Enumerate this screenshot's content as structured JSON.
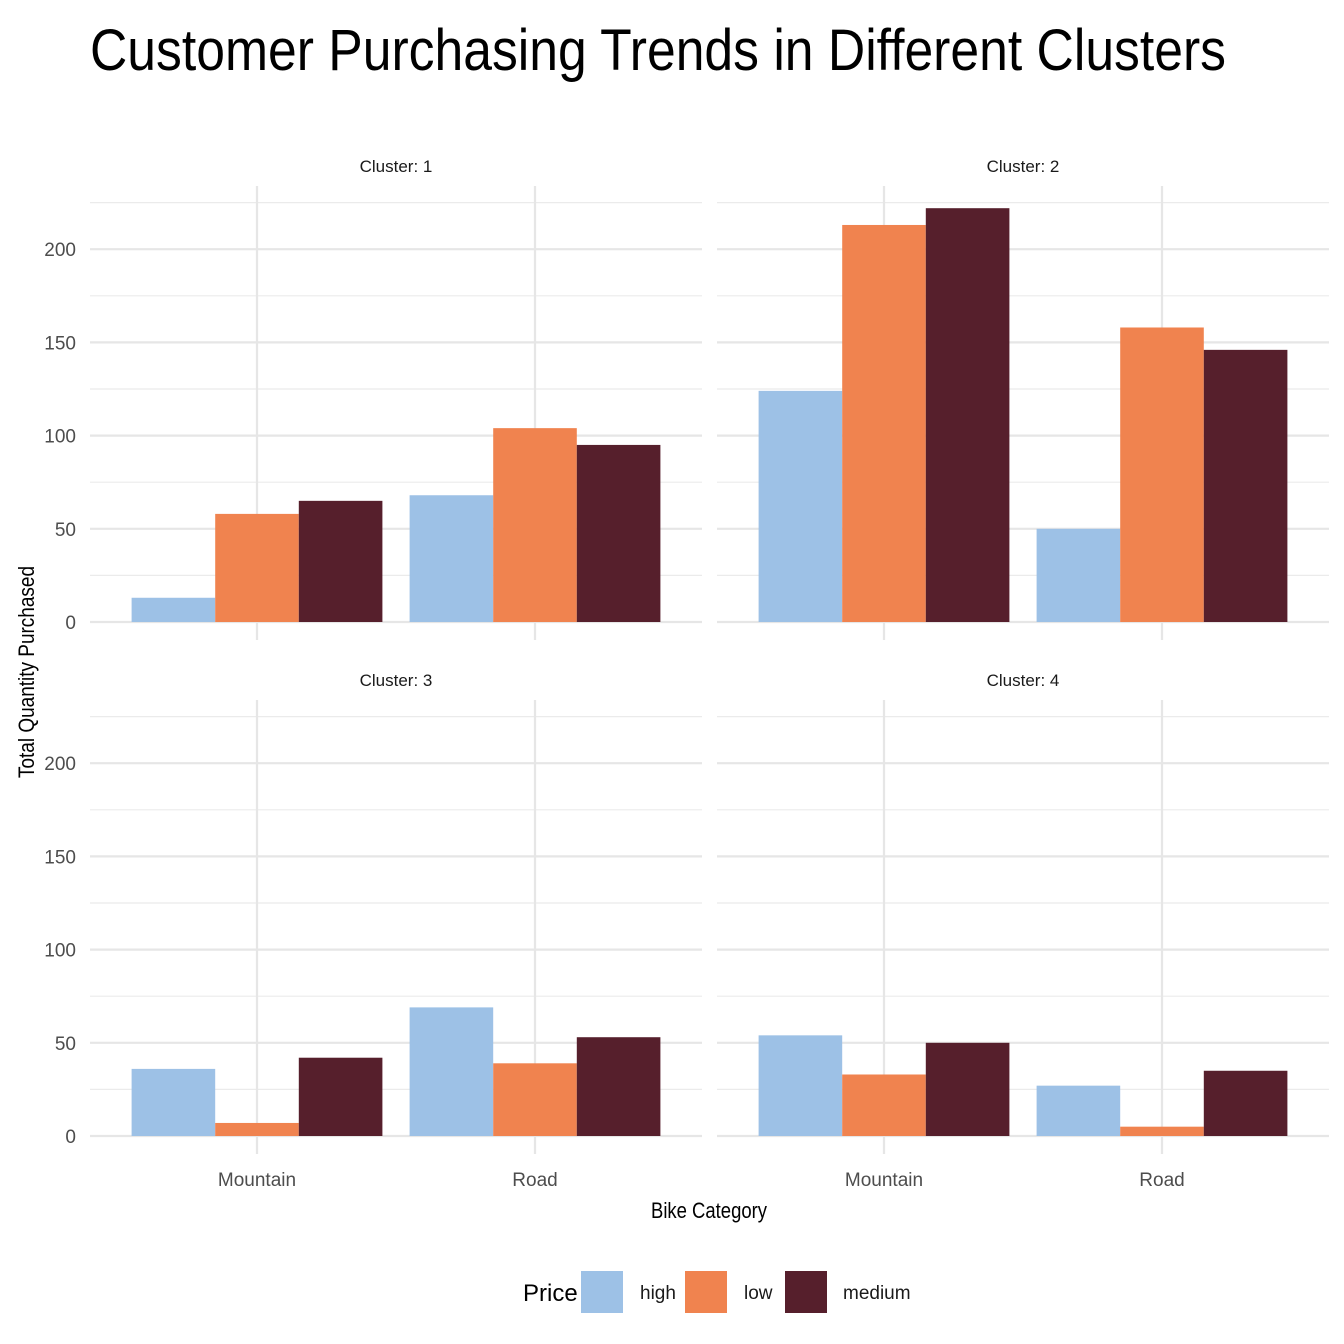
{
  "chart_data": {
    "type": "bar",
    "title": "Customer Purchasing Trends in Different Clusters",
    "xlabel": "Bike Category",
    "ylabel": "Total Quantity Purchased",
    "categories": [
      "Mountain",
      "Road"
    ],
    "ylim": [
      0,
      225
    ],
    "yticks": [
      0,
      50,
      100,
      150,
      200
    ],
    "grid": true,
    "legend": {
      "title": "Price",
      "position": "bottom",
      "entries": [
        "high",
        "low",
        "medium"
      ]
    },
    "colors": {
      "high": "#9DC1E6",
      "low": "#F0834F",
      "medium": "#561F2C"
    },
    "panels": [
      {
        "label": "Cluster: 1",
        "series": [
          {
            "name": "high",
            "values": [
              13,
              68
            ]
          },
          {
            "name": "low",
            "values": [
              58,
              104
            ]
          },
          {
            "name": "medium",
            "values": [
              65,
              95
            ]
          }
        ]
      },
      {
        "label": "Cluster: 2",
        "series": [
          {
            "name": "high",
            "values": [
              124,
              50
            ]
          },
          {
            "name": "low",
            "values": [
              213,
              158
            ]
          },
          {
            "name": "medium",
            "values": [
              222,
              146
            ]
          }
        ]
      },
      {
        "label": "Cluster: 3",
        "series": [
          {
            "name": "high",
            "values": [
              36,
              69
            ]
          },
          {
            "name": "low",
            "values": [
              7,
              39
            ]
          },
          {
            "name": "medium",
            "values": [
              42,
              53
            ]
          }
        ]
      },
      {
        "label": "Cluster: 4",
        "series": [
          {
            "name": "high",
            "values": [
              54,
              27
            ]
          },
          {
            "name": "low",
            "values": [
              33,
              5
            ]
          },
          {
            "name": "medium",
            "values": [
              50,
              35
            ]
          }
        ]
      }
    ]
  }
}
